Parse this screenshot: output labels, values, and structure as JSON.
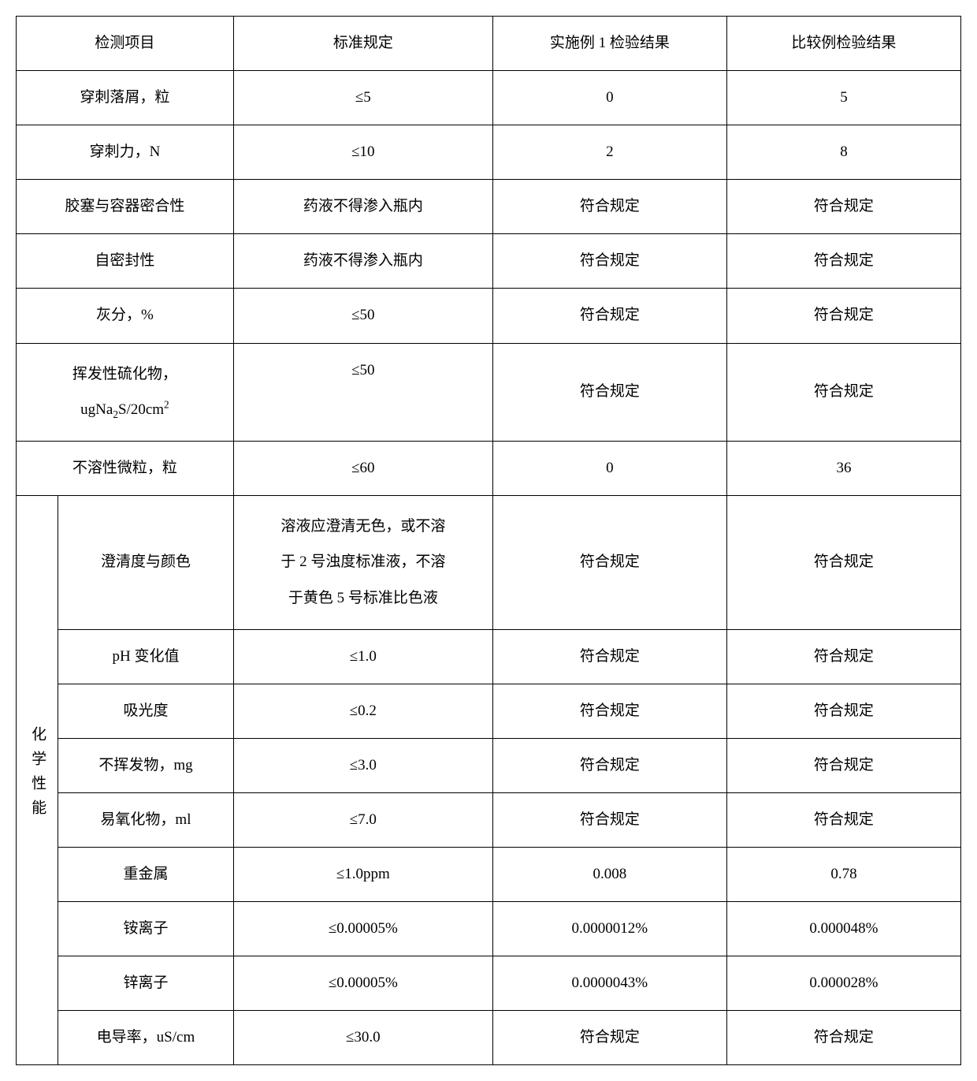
{
  "header": {
    "item": "检测项目",
    "standard": "标准规定",
    "result1": "实施例 1 检验结果",
    "result2": "比较例检验结果"
  },
  "rows": [
    {
      "item": "穿刺落屑，粒",
      "standard": "≤5",
      "r1": "0",
      "r2": "5"
    },
    {
      "item": "穿刺力，N",
      "standard": "≤10",
      "r1": "2",
      "r2": "8"
    },
    {
      "item": "胶塞与容器密合性",
      "standard": "药液不得渗入瓶内",
      "r1": "符合规定",
      "r2": "符合规定"
    },
    {
      "item": "自密封性",
      "standard": "药液不得渗入瓶内",
      "r1": "符合规定",
      "r2": "符合规定"
    },
    {
      "item": "灰分，%",
      "standard": "≤50",
      "r1": "符合规定",
      "r2": "符合规定"
    },
    {
      "item_html": "挥发性硫化物，<br>ugNa<sub>2</sub>S/20cm<sup>2</sup>",
      "standard": "≤50",
      "r1": "符合规定",
      "r2": "符合规定",
      "valign_top": true
    },
    {
      "item": "不溶性微粒，粒",
      "standard": "≤60",
      "r1": "0",
      "r2": "36"
    }
  ],
  "chem": {
    "group_label": "化学性能",
    "rows": [
      {
        "item": "澄清度与颜色",
        "standard_html": "溶液应澄清无色，或不溶<br>于 2 号浊度标准液，不溶<br>于黄色 5 号标准比色液",
        "r1": "符合规定",
        "r2": "符合规定"
      },
      {
        "item": "pH 变化值",
        "standard": "≤1.0",
        "r1": "符合规定",
        "r2": "符合规定"
      },
      {
        "item": "吸光度",
        "standard": "≤0.2",
        "r1": "符合规定",
        "r2": "符合规定"
      },
      {
        "item": "不挥发物，mg",
        "standard": "≤3.0",
        "r1": "符合规定",
        "r2": "符合规定"
      },
      {
        "item": "易氧化物，ml",
        "standard": "≤7.0",
        "r1": "符合规定",
        "r2": "符合规定"
      },
      {
        "item": "重金属",
        "standard": "≤1.0ppm",
        "r1": "0.008",
        "r2": "0.78"
      },
      {
        "item": "铵离子",
        "standard": "≤0.00005%",
        "r1": "0.0000012%",
        "r2": "0.000048%"
      },
      {
        "item": "锌离子",
        "standard": "≤0.00005%",
        "r1": "0.0000043%",
        "r2": "0.000028%"
      },
      {
        "item": "电导率，uS/cm",
        "standard": "≤30.0",
        "r1": "符合规定",
        "r2": "符合规定"
      }
    ]
  }
}
